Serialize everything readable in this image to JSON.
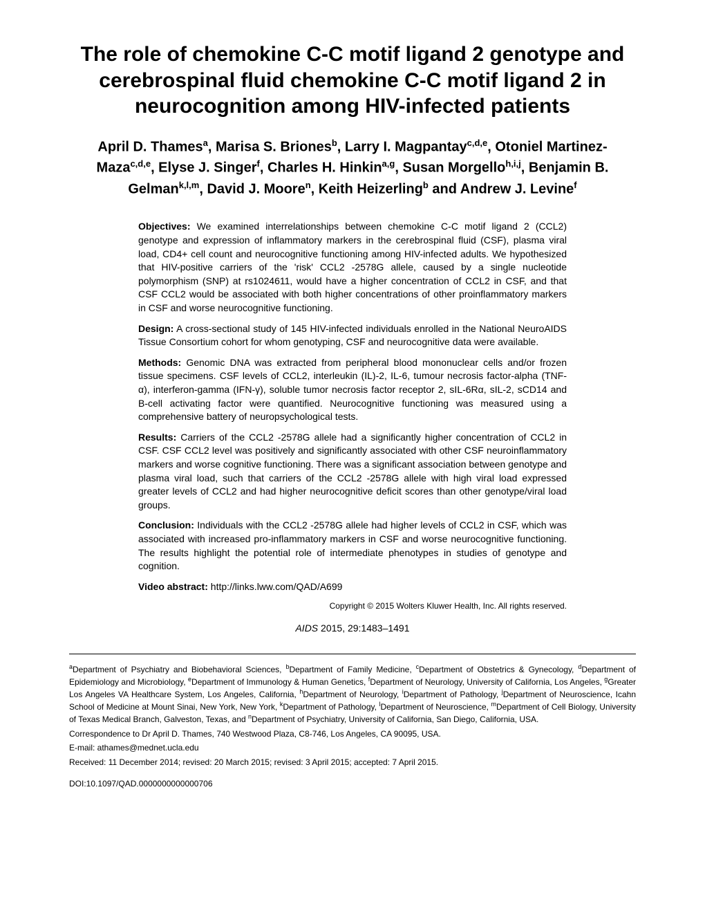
{
  "title": "The role of chemokine C-C motif ligand 2 genotype and cerebrospinal fluid chemokine C-C motif ligand 2 in neurocognition among HIV-infected patients",
  "authors_html": "April D. Thames<sup>a</sup>, Marisa S. Briones<sup>b</sup>, Larry I. Magpantay<sup>c,d,e</sup>, Otoniel Martinez-Maza<sup>c,d,e</sup>, Elyse J. Singer<sup>f</sup>, Charles H. Hinkin<sup>a,g</sup>, Susan Morgello<sup>h,i,j</sup>, Benjamin B. Gelman<sup>k,l,m</sup>, David J. Moore<sup>n</sup>, Keith Heizerling<sup>b</sup> and Andrew J. Levine<sup>f</sup>",
  "abstract": {
    "objectives": {
      "label": "Objectives:",
      "text": " We examined interrelationships between chemokine C-C motif ligand 2 (CCL2) genotype and expression of inflammatory markers in the cerebrospinal fluid (CSF), plasma viral load, CD4+ cell count and neurocognitive functioning among HIV-infected adults. We hypothesized that HIV-positive carriers of the 'risk' CCL2 -2578G allele, caused by a single nucleotide polymorphism (SNP) at rs1024611, would have a higher concentration of CCL2 in CSF, and that CSF CCL2 would be associated with both higher concentrations of other proinflammatory markers in CSF and worse neurocognitive functioning."
    },
    "design": {
      "label": "Design:",
      "text": " A cross-sectional study of 145 HIV-infected individuals enrolled in the National NeuroAIDS Tissue Consortium cohort for whom genotyping, CSF and neurocognitive data were available."
    },
    "methods": {
      "label": "Methods:",
      "text": " Genomic DNA was extracted from peripheral blood mononuclear cells and/or frozen tissue specimens. CSF levels of CCL2, interleukin (IL)-2, IL-6, tumour necrosis factor-alpha (TNF-α), interferon-gamma (IFN-γ), soluble tumor necrosis factor receptor 2, sIL-6Rα, sIL-2, sCD14 and B-cell activating factor were quantified. Neurocognitive functioning was measured using a comprehensive battery of neuropsychological tests."
    },
    "results": {
      "label": "Results:",
      "text": " Carriers of the CCL2 -2578G allele had a significantly higher concentration of CCL2 in CSF. CSF CCL2 level was positively and significantly associated with other CSF neuroinflammatory markers and worse cognitive functioning. There was a significant association between genotype and plasma viral load, such that carriers of the CCL2 -2578G allele with high viral load expressed greater levels of CCL2 and had higher neurocognitive deficit scores than other genotype/viral load groups."
    },
    "conclusion": {
      "label": "Conclusion:",
      "text": " Individuals with the CCL2 -2578G allele had higher levels of CCL2 in CSF, which was associated with increased pro-inflammatory markers in CSF and worse neurocognitive functioning. The results highlight the potential role of intermediate phenotypes in studies of genotype and cognition."
    },
    "video": {
      "label": "Video abstract:",
      "text": " http://links.lww.com/QAD/A699"
    }
  },
  "copyright": "Copyright © 2015 Wolters Kluwer Health, Inc. All rights reserved.",
  "citation": {
    "journal": "AIDS",
    "rest": " 2015, 29:1483–1491"
  },
  "affiliations_html": "<sup>a</sup>Department of Psychiatry and Biobehavioral Sciences, <sup>b</sup>Department of Family Medicine, <sup>c</sup>Department of Obstetrics & Gynecology, <sup>d</sup>Department of Epidemiology and Microbiology, <sup>e</sup>Department of Immunology & Human Genetics, <sup>f</sup>Department of Neurology, University of California, Los Angeles, <sup>g</sup>Greater Los Angeles VA Healthcare System, Los Angeles, California, <sup>h</sup>Department of Neurology, <sup>i</sup>Department of Pathology, <sup>j</sup>Department of Neuroscience, Icahn School of Medicine at Mount Sinai, New York, New York, <sup>k</sup>Department of Pathology, <sup>l</sup>Department of Neuroscience, <sup>m</sup>Department of Cell Biology, University of Texas Medical Branch, Galveston, Texas, and <sup>n</sup>Department of Psychiatry, University of California, San Diego, California, USA.",
  "correspondence": "Correspondence to Dr April D. Thames, 740 Westwood Plaza, C8-746, Los Angeles, CA 90095, USA.",
  "email": "E-mail: athames@mednet.ucla.edu",
  "received": "Received: 11 December 2014; revised: 20 March 2015; revised: 3 April 2015; accepted: 7 April 2015.",
  "doi": "DOI:10.1097/QAD.0000000000000706"
}
